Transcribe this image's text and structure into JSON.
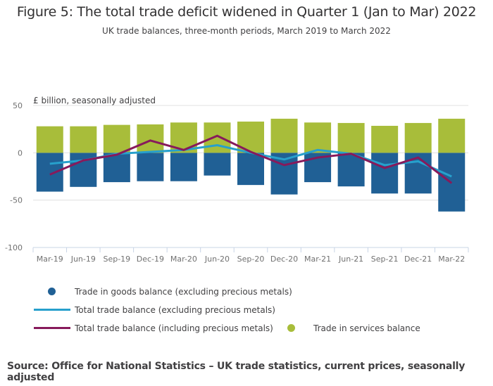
{
  "chart_data": {
    "type": "bar",
    "title": "Figure 5: The total trade deficit widened in Quarter 1 (Jan to Mar) 2022",
    "subtitle": "UK trade balances, three-month periods, March 2019 to March 2022",
    "ylabel": "£ billion, seasonally adjusted",
    "xlabel": "",
    "ylim": [
      -100,
      50
    ],
    "yticks": [
      "50",
      "0",
      "-50",
      "-100"
    ],
    "yticks_values": [
      50,
      0,
      -50,
      -100
    ],
    "categories": [
      "Mar-19",
      "Jun-19",
      "Sep-19",
      "Dec-19",
      "Mar-20",
      "Jun-20",
      "Sep-20",
      "Dec-20",
      "Mar-21",
      "Jun-21",
      "Sep-21",
      "Dec-21",
      "Mar-22"
    ],
    "series": [
      {
        "name": "Trade in goods balance (excluding precious metals)",
        "kind": "bar",
        "color": "#206095",
        "values": [
          -41,
          -36,
          -31,
          -30,
          -30,
          -24,
          -34,
          -44,
          -31,
          -35.5,
          -43,
          -43,
          -62
        ]
      },
      {
        "name": "Trade in services balance",
        "kind": "bar",
        "color": "#a8bd3a",
        "values": [
          28,
          28,
          29.5,
          30,
          32,
          32,
          33,
          36,
          32,
          31.5,
          28.5,
          31.5,
          36
        ]
      },
      {
        "name": "Total trade balance (excluding precious metals)",
        "kind": "line",
        "color": "#27a0cc",
        "values": [
          -11.5,
          -8,
          -1,
          1,
          3,
          8,
          0,
          -7,
          3,
          -1,
          -13,
          -9,
          -25
        ]
      },
      {
        "name": "Total trade balance (including precious metals)",
        "kind": "line",
        "color": "#871a5b",
        "values": [
          -23,
          -8,
          -2,
          13,
          3,
          18,
          1,
          -13,
          -5,
          -1,
          -16,
          -5,
          -32
        ]
      }
    ],
    "grid": true,
    "legend_position": "bottom"
  },
  "source": "Source: Office for National Statistics – UK trade statistics, current prices, seasonally adjusted"
}
